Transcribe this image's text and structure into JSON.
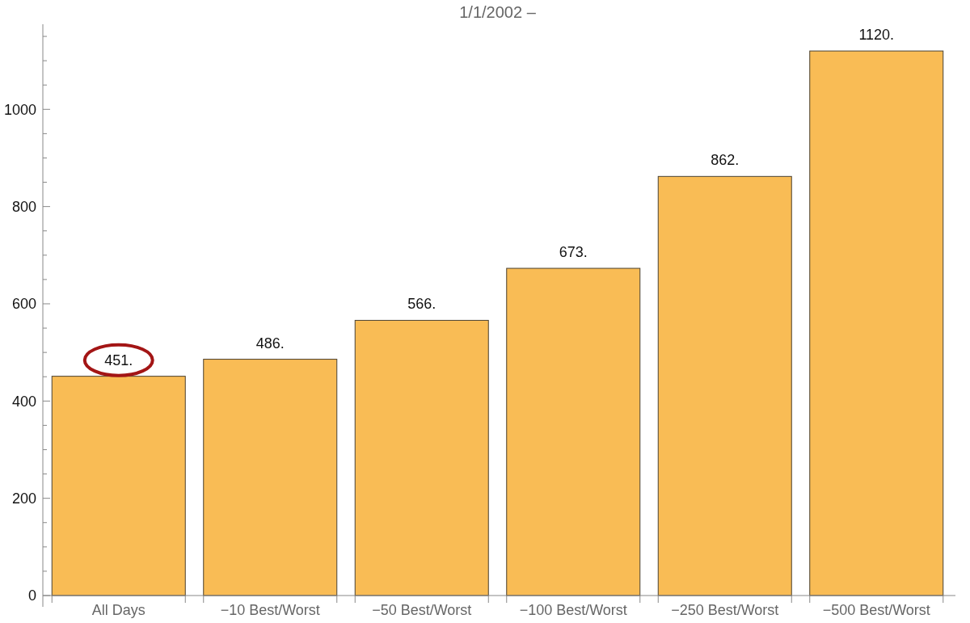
{
  "chart_data": {
    "type": "bar",
    "title": "1/1/2002 –",
    "categories": [
      "All Days",
      "−10 Best/Worst",
      "−50 Best/Worst",
      "−100 Best/Worst",
      "−250 Best/Worst",
      "−500 Best/Worst"
    ],
    "values": [
      451,
      486,
      566,
      673,
      862,
      1120
    ],
    "value_labels": [
      "451.",
      "486.",
      "566.",
      "673.",
      "862.",
      "1120."
    ],
    "color": "#f9bc55",
    "ylim": [
      0,
      1175
    ],
    "yticks": [
      0,
      {
        "value": 50,
        "label": null
      },
      200,
      {
        "value": 100,
        "label": null
      },
      {
        "value": 150,
        "label": null
      },
      {
        "value": 250,
        "label": null
      },
      {
        "value": 300,
        "label": null
      },
      {
        "value": 350,
        "label": null
      },
      400,
      {
        "value": 450,
        "label": null
      },
      {
        "value": 500,
        "label": null
      },
      {
        "value": 550,
        "label": null
      },
      600,
      {
        "value": 650,
        "label": null
      },
      {
        "value": 700,
        "label": null
      },
      {
        "value": 750,
        "label": null
      },
      800,
      {
        "value": 850,
        "label": null
      },
      {
        "value": 900,
        "label": null
      },
      {
        "value": 950,
        "label": null
      },
      1000,
      {
        "value": 1050,
        "label": null
      },
      {
        "value": 1100,
        "label": null
      },
      {
        "value": 1150,
        "label": null
      }
    ],
    "grid": false
  }
}
